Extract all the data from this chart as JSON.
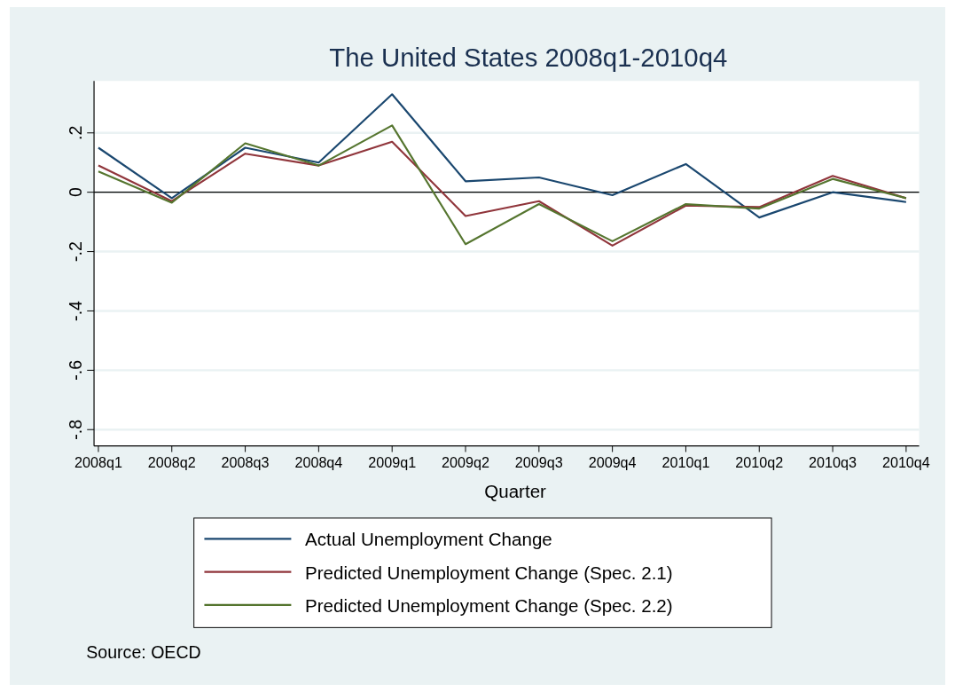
{
  "chart_data": {
    "type": "line",
    "title": "The United States 2008q1-2010q4",
    "xlabel": "Quarter",
    "categories": [
      "2008q1",
      "2008q2",
      "2008q3",
      "2008q4",
      "2009q1",
      "2009q2",
      "2009q3",
      "2009q4",
      "2010q1",
      "2010q2",
      "2010q3",
      "2010q4"
    ],
    "series": [
      {
        "name": "Actual Unemployment Change",
        "color": "#1a476f",
        "values": [
          0.15,
          -0.02,
          0.15,
          0.1,
          0.33,
          0.037,
          0.05,
          -0.01,
          0.095,
          -0.085,
          0,
          -0.033
        ]
      },
      {
        "name": "Predicted Unemployment Change (Spec. 2.1)",
        "color": "#90353b",
        "values": [
          0.09,
          -0.03,
          0.13,
          0.09,
          0.17,
          -0.08,
          -0.03,
          -0.18,
          -0.045,
          -0.05,
          0.055,
          -0.02
        ]
      },
      {
        "name": "Predicted Unemployment Change (Spec. 2.2)",
        "color": "#55752f",
        "values": [
          0.07,
          -0.035,
          0.165,
          0.09,
          0.225,
          -0.175,
          -0.04,
          -0.165,
          -0.04,
          -0.055,
          0.045,
          -0.02
        ]
      }
    ],
    "ylim": [
      -0.855,
      0.375
    ],
    "yticks": [
      {
        "value": -0.8,
        "label": "-.8"
      },
      {
        "value": -0.6,
        "label": "-.6"
      },
      {
        "value": -0.4,
        "label": "-.4"
      },
      {
        "value": -0.2,
        "label": "-.2"
      },
      0,
      {
        "value": 0.2,
        "label": ".2"
      }
    ],
    "grid": "y",
    "legend": "bottom",
    "marker": "none",
    "line_style": "solid",
    "ref_lines": [
      {
        "axis": "y",
        "value": 0,
        "color": "#000000"
      }
    ],
    "annotations": [
      "Source: OECD"
    ]
  }
}
